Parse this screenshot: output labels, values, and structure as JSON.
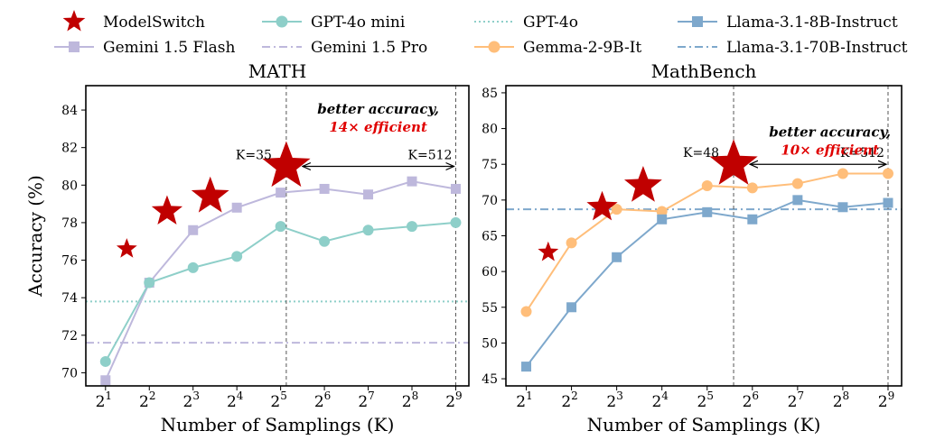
{
  "legend": {
    "items": [
      {
        "label": "ModelSwitch",
        "color": "#c00000",
        "marker": "star",
        "line": "none"
      },
      {
        "label": "GPT-4o mini",
        "color": "#8ecfc9",
        "marker": "circle",
        "line": "solid"
      },
      {
        "label": "GPT-4o",
        "color": "#8ecfc9",
        "marker": "none",
        "line": "dotted"
      },
      {
        "label": "Llama-3.1-8B-Instruct",
        "color": "#7ea8cc",
        "marker": "square",
        "line": "solid"
      },
      {
        "label": "Gemini 1.5 Flash",
        "color": "#beb8dc",
        "marker": "square",
        "line": "solid"
      },
      {
        "label": "Gemini 1.5 Pro",
        "color": "#beb8dc",
        "marker": "none",
        "line": "dashdot"
      },
      {
        "label": "Gemma-2-9B-It",
        "color": "#ffbe7a",
        "marker": "circle",
        "line": "solid"
      },
      {
        "label": "Llama-3.1-70B-Instruct",
        "color": "#7ea8cc",
        "marker": "none",
        "line": "dashdot"
      }
    ]
  },
  "chart_data": [
    {
      "type": "line",
      "title": "MATH",
      "xlabel": "Number of Samplings (K)",
      "ylabel": "Accuracy (%)",
      "x_scale": "log2",
      "x_ticks": [
        2,
        4,
        8,
        16,
        32,
        64,
        128,
        256,
        512
      ],
      "x_tick_exponents": [
        "1",
        "2",
        "3",
        "4",
        "5",
        "6",
        "7",
        "8",
        "9"
      ],
      "ylim": [
        69.3,
        85.3
      ],
      "y_ticks": [
        70,
        72,
        74,
        76,
        78,
        80,
        82,
        84
      ],
      "y_tick_labels": [
        "70",
        "72",
        "74",
        "76",
        "78",
        "80",
        "82",
        "84"
      ],
      "series": [
        {
          "name": "Gemini 1.5 Flash",
          "color": "#beb8dc",
          "marker": "square",
          "x": [
            2,
            4,
            8,
            16,
            32,
            64,
            128,
            256,
            512
          ],
          "y": [
            69.6,
            74.8,
            77.6,
            78.8,
            79.6,
            79.8,
            79.5,
            80.2,
            79.8
          ]
        },
        {
          "name": "GPT-4o mini",
          "color": "#8ecfc9",
          "marker": "circle",
          "x": [
            2,
            4,
            8,
            16,
            32,
            64,
            128,
            256,
            512
          ],
          "y": [
            70.6,
            74.8,
            75.6,
            76.2,
            77.8,
            77.0,
            77.6,
            77.8,
            78.0
          ]
        },
        {
          "name": "ModelSwitch",
          "color": "#c00000",
          "marker": "star",
          "x": [
            2.8,
            5.3,
            10.5,
            35
          ],
          "y": [
            76.6,
            78.6,
            79.4,
            81.0
          ],
          "sizes": [
            0.6,
            0.9,
            1.1,
            1.4
          ]
        }
      ],
      "hlines": [
        {
          "name": "GPT-4o",
          "y": 73.8,
          "color": "#8ecfc9",
          "style": "dotted"
        },
        {
          "name": "Gemini 1.5 Pro",
          "y": 71.6,
          "color": "#beb8dc",
          "style": "dashdot"
        }
      ],
      "vlines": [
        {
          "x": 35
        },
        {
          "x": 512
        }
      ],
      "annotations": {
        "k_left": "K=35",
        "k_left_pos": {
          "x": 35,
          "y": 81.0
        },
        "k_right": "K=512",
        "k_right_pos": {
          "x": 512,
          "y": 81.0
        },
        "text_line1": "better accuracy,",
        "text_line2": "14× efficient",
        "text_pos": {
          "x": 150,
          "y": 83.8
        }
      }
    },
    {
      "type": "line",
      "title": "MathBench",
      "xlabel": "Number of Samplings (K)",
      "ylabel": "",
      "x_scale": "log2",
      "x_ticks": [
        2,
        4,
        8,
        16,
        32,
        64,
        128,
        256,
        512
      ],
      "x_tick_exponents": [
        "1",
        "2",
        "3",
        "4",
        "5",
        "6",
        "7",
        "8",
        "9"
      ],
      "ylim": [
        44,
        86
      ],
      "y_ticks": [
        45,
        50,
        55,
        60,
        65,
        70,
        75,
        80,
        85
      ],
      "y_tick_labels": [
        "45",
        "50",
        "55",
        "60",
        "65",
        "70",
        "75",
        "80",
        "85"
      ],
      "series": [
        {
          "name": "Gemma-2-9B-It",
          "color": "#ffbe7a",
          "marker": "circle",
          "x": [
            2,
            4,
            8,
            16,
            32,
            64,
            128,
            256,
            512
          ],
          "y": [
            54.4,
            64.0,
            68.7,
            68.4,
            72.0,
            71.7,
            72.3,
            73.7,
            73.7
          ]
        },
        {
          "name": "Llama-3.1-8B-Instruct",
          "color": "#7ea8cc",
          "marker": "square",
          "x": [
            2,
            4,
            8,
            16,
            32,
            64,
            128,
            256,
            512
          ],
          "y": [
            46.7,
            55.0,
            62.0,
            67.3,
            68.3,
            67.3,
            70.0,
            69.0,
            69.6
          ]
        },
        {
          "name": "ModelSwitch",
          "color": "#c00000",
          "marker": "star",
          "x": [
            2.8,
            6.4,
            12,
            48
          ],
          "y": [
            62.7,
            69.0,
            72.0,
            75.0
          ],
          "sizes": [
            0.6,
            0.9,
            1.1,
            1.4
          ]
        }
      ],
      "hlines": [
        {
          "name": "Llama-3.1-70B-Instruct",
          "y": 68.7,
          "color": "#7ea8cc",
          "style": "dashdot"
        }
      ],
      "vlines": [
        {
          "x": 48
        },
        {
          "x": 512
        }
      ],
      "annotations": {
        "k_left": "K=48",
        "k_left_pos": {
          "x": 48,
          "y": 75.0
        },
        "k_right": "K=512",
        "k_right_pos": {
          "x": 512,
          "y": 75.0
        },
        "text_line1": "better accuracy,",
        "text_line2": "10× efficient",
        "text_pos": {
          "x": 210,
          "y": 78.9
        }
      }
    }
  ]
}
